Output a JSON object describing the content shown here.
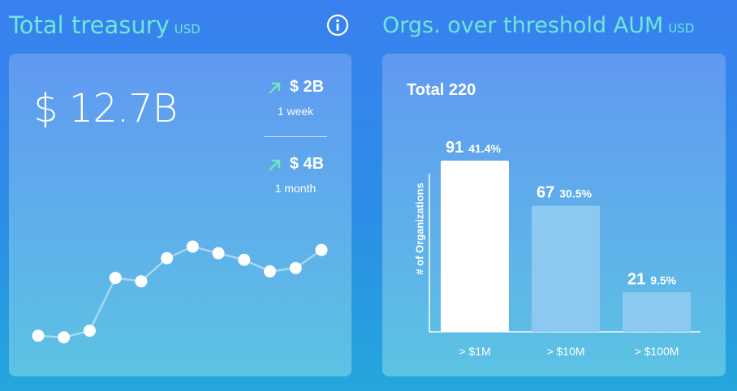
{
  "treasury": {
    "title": "Total treasury",
    "unit": "USD",
    "total": "$ 12.7B",
    "week": {
      "amount": "$ 2B",
      "period": "1 week"
    },
    "month": {
      "amount": "$ 4B",
      "period": "1 month"
    },
    "accent_color": "#6ee8d8",
    "sparkline": [
      0.05,
      0.04,
      0.08,
      0.4,
      0.38,
      0.52,
      0.59,
      0.55,
      0.51,
      0.44,
      0.46,
      0.57
    ]
  },
  "aum": {
    "title": "Orgs. over threshold AUM",
    "unit": "USD",
    "total_label": "Total 220"
  },
  "chart_data": {
    "type": "bar",
    "title": "Total 220",
    "xlabel": "",
    "ylabel": "# of Organizations",
    "categories": [
      "> $1M",
      "> $10M",
      "> $100M"
    ],
    "values": [
      91,
      67,
      21
    ],
    "percent_labels": [
      "41.4%",
      "30.5%",
      "9.5%"
    ],
    "ylim": [
      0,
      91
    ],
    "bar_colors": [
      "#ffffff",
      "#8cc8f0",
      "#8cc8f0"
    ]
  }
}
